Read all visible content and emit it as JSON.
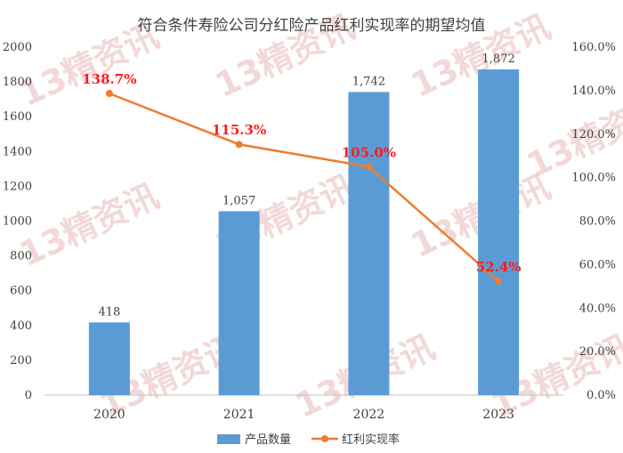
{
  "chart_data": {
    "type": "bar",
    "title": "符合条件寿险公司分红险产品红利实现率的期望均值",
    "categories": [
      "2020",
      "2021",
      "2022",
      "2023"
    ],
    "series": [
      {
        "name": "产品数量",
        "type": "bar",
        "axis": "left",
        "values": [
          418,
          1057,
          1742,
          1872
        ],
        "labels": [
          "418",
          "1,057",
          "1,742",
          "1,872"
        ],
        "color": "#5b9bd5"
      },
      {
        "name": "红利实现率",
        "type": "line",
        "axis": "right",
        "values": [
          138.7,
          115.3,
          105.0,
          52.4
        ],
        "labels": [
          "138.7%",
          "115.3%",
          "105.0%",
          "52.4%"
        ],
        "color": "#ed7d31"
      }
    ],
    "left_axis": {
      "ylim": [
        0,
        2000
      ],
      "ticks": [
        "0",
        "200",
        "400",
        "600",
        "800",
        "1000",
        "1200",
        "1400",
        "1600",
        "1800",
        "2000"
      ]
    },
    "right_axis": {
      "ylim": [
        0,
        160
      ],
      "ticks": [
        "0.0%",
        "20.0%",
        "40.0%",
        "60.0%",
        "80.0%",
        "100.0%",
        "120.0%",
        "140.0%",
        "160.0%"
      ]
    },
    "legend": {
      "position": "bottom",
      "items": [
        "产品数量",
        "红利实现率"
      ]
    },
    "label_color": "#ff1a1a",
    "grid": false
  },
  "watermark": {
    "text": "13精资讯",
    "kind": "logo"
  }
}
